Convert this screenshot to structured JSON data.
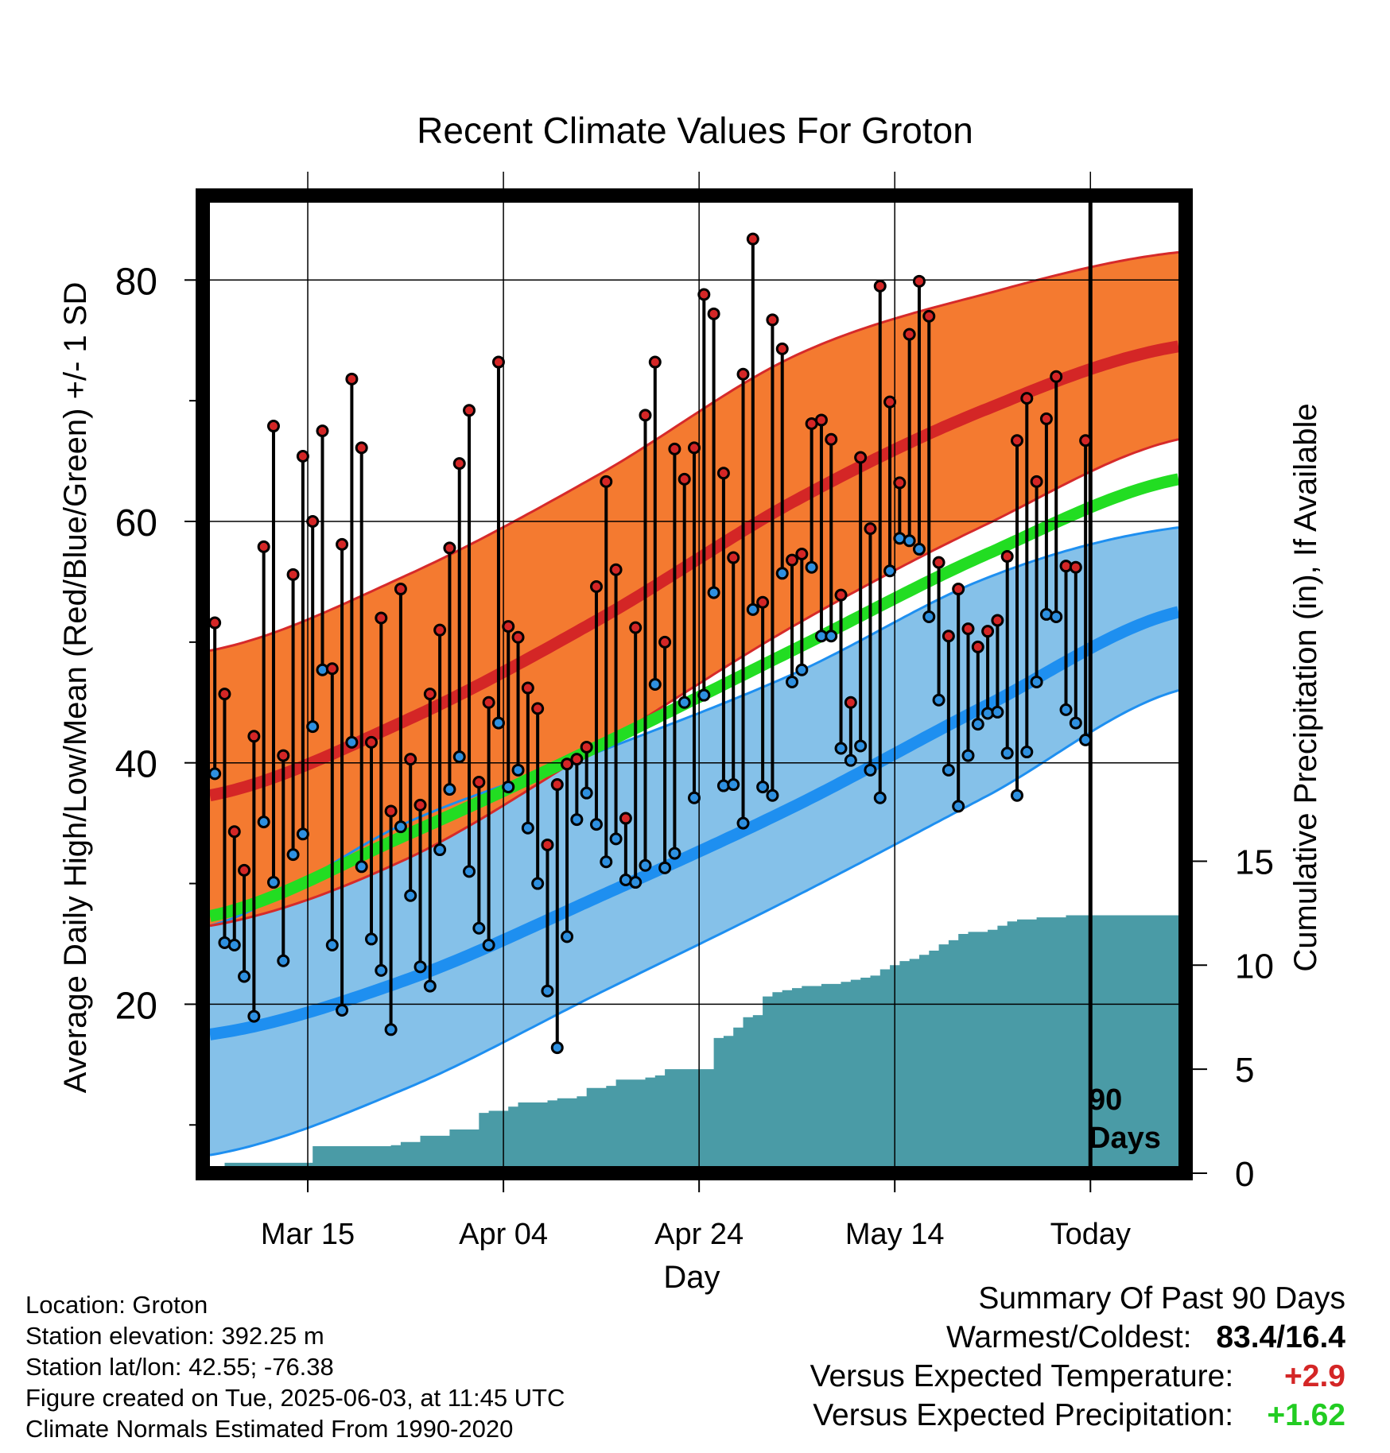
{
  "chart_data": {
    "type": "line",
    "title": "Recent Climate Values For Groton",
    "xlabel": "Day",
    "ylabel_left": "Average Daily High/Low/Mean (Red/Blue/Green) +/- 1 SD",
    "ylabel_right": "Cumulative Precipitation (in), If Available",
    "x_range_days": [
      -90,
      9
    ],
    "ylim_temp": [
      6,
      87
    ],
    "ylim_precip": [
      0,
      47
    ],
    "x_ticks": [
      {
        "day": -80,
        "label": "Mar 15"
      },
      {
        "day": -60,
        "label": "Apr 04"
      },
      {
        "day": -40,
        "label": "Apr 24"
      },
      {
        "day": -20,
        "label": "May 14"
      },
      {
        "day": 0,
        "label": "Today"
      }
    ],
    "y_ticks_left": [
      20,
      40,
      60,
      80
    ],
    "y_minor_ticks_left": [
      10,
      30,
      50,
      70
    ],
    "y_ticks_right": [
      0,
      5,
      10,
      15
    ],
    "today_marker_label": [
      "90",
      "Days"
    ],
    "colors": {
      "high_band": "#F47A30",
      "high_band_edge": "#D62A2A",
      "normal_high": "#D42626",
      "low_band": "#85C1E9",
      "low_band_edge": "#1E8FF0",
      "normal_low": "#1E8FF0",
      "normal_mean": "#22DD22",
      "precip_fill": "#4A9BA6",
      "high_dot": "#D42626",
      "low_dot": "#2E90E0"
    },
    "normals": {
      "days": [
        -90,
        -70,
        -50,
        -30,
        -10,
        9
      ],
      "normal_high": [
        37.3,
        43.5,
        52.0,
        61.8,
        69.5,
        74.5
      ],
      "normal_high_plus_sd": [
        49.3,
        55.5,
        64.0,
        73.8,
        79.0,
        82.3
      ],
      "normal_high_minus_sd": [
        26.5,
        32.0,
        41.5,
        51.5,
        60.0,
        66.8
      ],
      "normal_low": [
        17.5,
        22.0,
        29.0,
        36.5,
        45.0,
        52.5
      ],
      "normal_low_plus_sd": [
        26.5,
        35.0,
        41.0,
        47.5,
        55.5,
        59.5
      ],
      "normal_low_minus_sd": [
        7.5,
        13.0,
        21.0,
        29.0,
        37.5,
        46.0
      ],
      "normal_mean": [
        27.3,
        34.0,
        41.5,
        49.5,
        57.5,
        63.5
      ]
    },
    "daily_highs": [
      51.6,
      45.7,
      34.3,
      31.1,
      42.2,
      57.9,
      67.9,
      40.6,
      55.6,
      65.4,
      60.0,
      67.5,
      47.8,
      58.1,
      71.8,
      66.1,
      41.7,
      52.0,
      36.0,
      54.4,
      40.3,
      36.5,
      45.7,
      51.0,
      57.8,
      64.8,
      69.2,
      38.4,
      45.0,
      73.2,
      51.3,
      50.4,
      46.2,
      44.5,
      33.2,
      38.2,
      39.9,
      40.3,
      41.3,
      54.6,
      63.3,
      56.0,
      35.4,
      51.2,
      68.8,
      73.2,
      50.0,
      66.0,
      63.5,
      66.1,
      78.8,
      77.2,
      64.0,
      57.0,
      72.2,
      83.4,
      53.3,
      76.7,
      74.3,
      56.8,
      57.3,
      68.1,
      68.4,
      66.8,
      53.9,
      45.0,
      65.3,
      59.4,
      79.5,
      69.9,
      63.2,
      75.5,
      79.9,
      77.0,
      56.6,
      50.5,
      54.4,
      51.1,
      49.6,
      50.9,
      51.8,
      57.1,
      66.7,
      70.2,
      63.3,
      68.5,
      72.0,
      56.3,
      56.2,
      66.7
    ],
    "daily_lows": [
      39.1,
      25.1,
      24.9,
      22.3,
      19.0,
      35.1,
      30.1,
      23.6,
      32.4,
      34.1,
      43.0,
      47.7,
      24.9,
      19.5,
      41.7,
      31.4,
      25.4,
      22.8,
      17.9,
      34.7,
      29.0,
      23.1,
      21.5,
      32.8,
      37.8,
      40.5,
      31.0,
      26.3,
      24.9,
      43.3,
      38.0,
      39.4,
      34.6,
      30.0,
      21.1,
      16.4,
      25.6,
      35.3,
      37.5,
      34.9,
      31.8,
      33.7,
      30.3,
      30.1,
      31.5,
      46.5,
      31.3,
      32.5,
      45.0,
      37.1,
      45.6,
      54.1,
      38.1,
      38.2,
      35.0,
      52.7,
      38.0,
      37.3,
      55.7,
      46.7,
      47.7,
      56.2,
      50.5,
      50.5,
      41.2,
      40.2,
      41.4,
      39.4,
      37.1,
      55.9,
      58.6,
      58.4,
      57.7,
      52.1,
      45.2,
      39.4,
      36.4,
      40.6,
      43.2,
      44.1,
      44.2,
      40.8,
      37.3,
      40.9,
      46.7,
      52.3,
      52.1,
      44.4,
      43.3,
      41.9
    ],
    "cumulative_precip": {
      "days": [
        -89.5,
        -88.5,
        -80.5,
        -79.5,
        -71.5,
        -70.5,
        -68.5,
        -67.5,
        -65.5,
        -64.5,
        -62.5,
        -61.5,
        -59.5,
        -58.5,
        -55.5,
        -54.5,
        -52.5,
        -51.5,
        -49.5,
        -48.5,
        -46.5,
        -45.5,
        -44.5,
        -43.5,
        -40.5,
        -39.5,
        -38.5,
        -37.5,
        -36.5,
        -35.5,
        -34.5,
        -33.5,
        -32.5,
        -31.5,
        -30.5,
        -29.5,
        -28.5,
        -27.5,
        -26.5,
        -25.5,
        -24.5,
        -23.5,
        -22.5,
        -21.5,
        -20.5,
        -19.5,
        -18.5,
        -17.5,
        -16.5,
        -15.5,
        -14.5,
        -13.5,
        -12.5,
        -11.5,
        -10.5,
        -9.5,
        -8.5,
        -7.5,
        -6.5,
        -5.5,
        -4.5,
        -3.5,
        -2.5,
        -1.5,
        -0.5,
        9
      ],
      "values": [
        0.3,
        0.5,
        0.5,
        1.3,
        1.35,
        1.5,
        1.8,
        1.8,
        2.1,
        2.1,
        2.9,
        3.0,
        3.2,
        3.4,
        3.5,
        3.6,
        3.7,
        4.1,
        4.2,
        4.5,
        4.5,
        4.6,
        4.7,
        5.0,
        5.0,
        5.0,
        6.5,
        6.6,
        7.0,
        7.5,
        7.6,
        8.5,
        8.7,
        8.8,
        8.9,
        9.0,
        9.0,
        9.1,
        9.1,
        9.2,
        9.3,
        9.4,
        9.5,
        9.8,
        10.0,
        10.2,
        10.3,
        10.5,
        10.7,
        11.0,
        11.2,
        11.5,
        11.6,
        11.6,
        11.7,
        11.9,
        12.1,
        12.2,
        12.2,
        12.3,
        12.3,
        12.3,
        12.4,
        12.4,
        12.4,
        12.4
      ]
    }
  },
  "info": {
    "location": "Location: Groton",
    "elevation": "Station elevation: 392.25 m",
    "latlon": "Station lat/lon: 42.55; -76.38",
    "created": "Figure created on Tue, 2025-06-03, at 11:45 UTC",
    "normals": "Climate Normals Estimated From 1990-2020"
  },
  "summary": {
    "title": "Summary Of Past 90 Days",
    "warm_cold_label": "Warmest/Coldest:",
    "warm_cold_value": "83.4/16.4",
    "temp_label": "Versus Expected Temperature:",
    "temp_value": "+2.9",
    "temp_color": "#D42626",
    "precip_label": "Versus Expected Precipitation:",
    "precip_value": "+1.62",
    "precip_color": "#22CC22"
  }
}
